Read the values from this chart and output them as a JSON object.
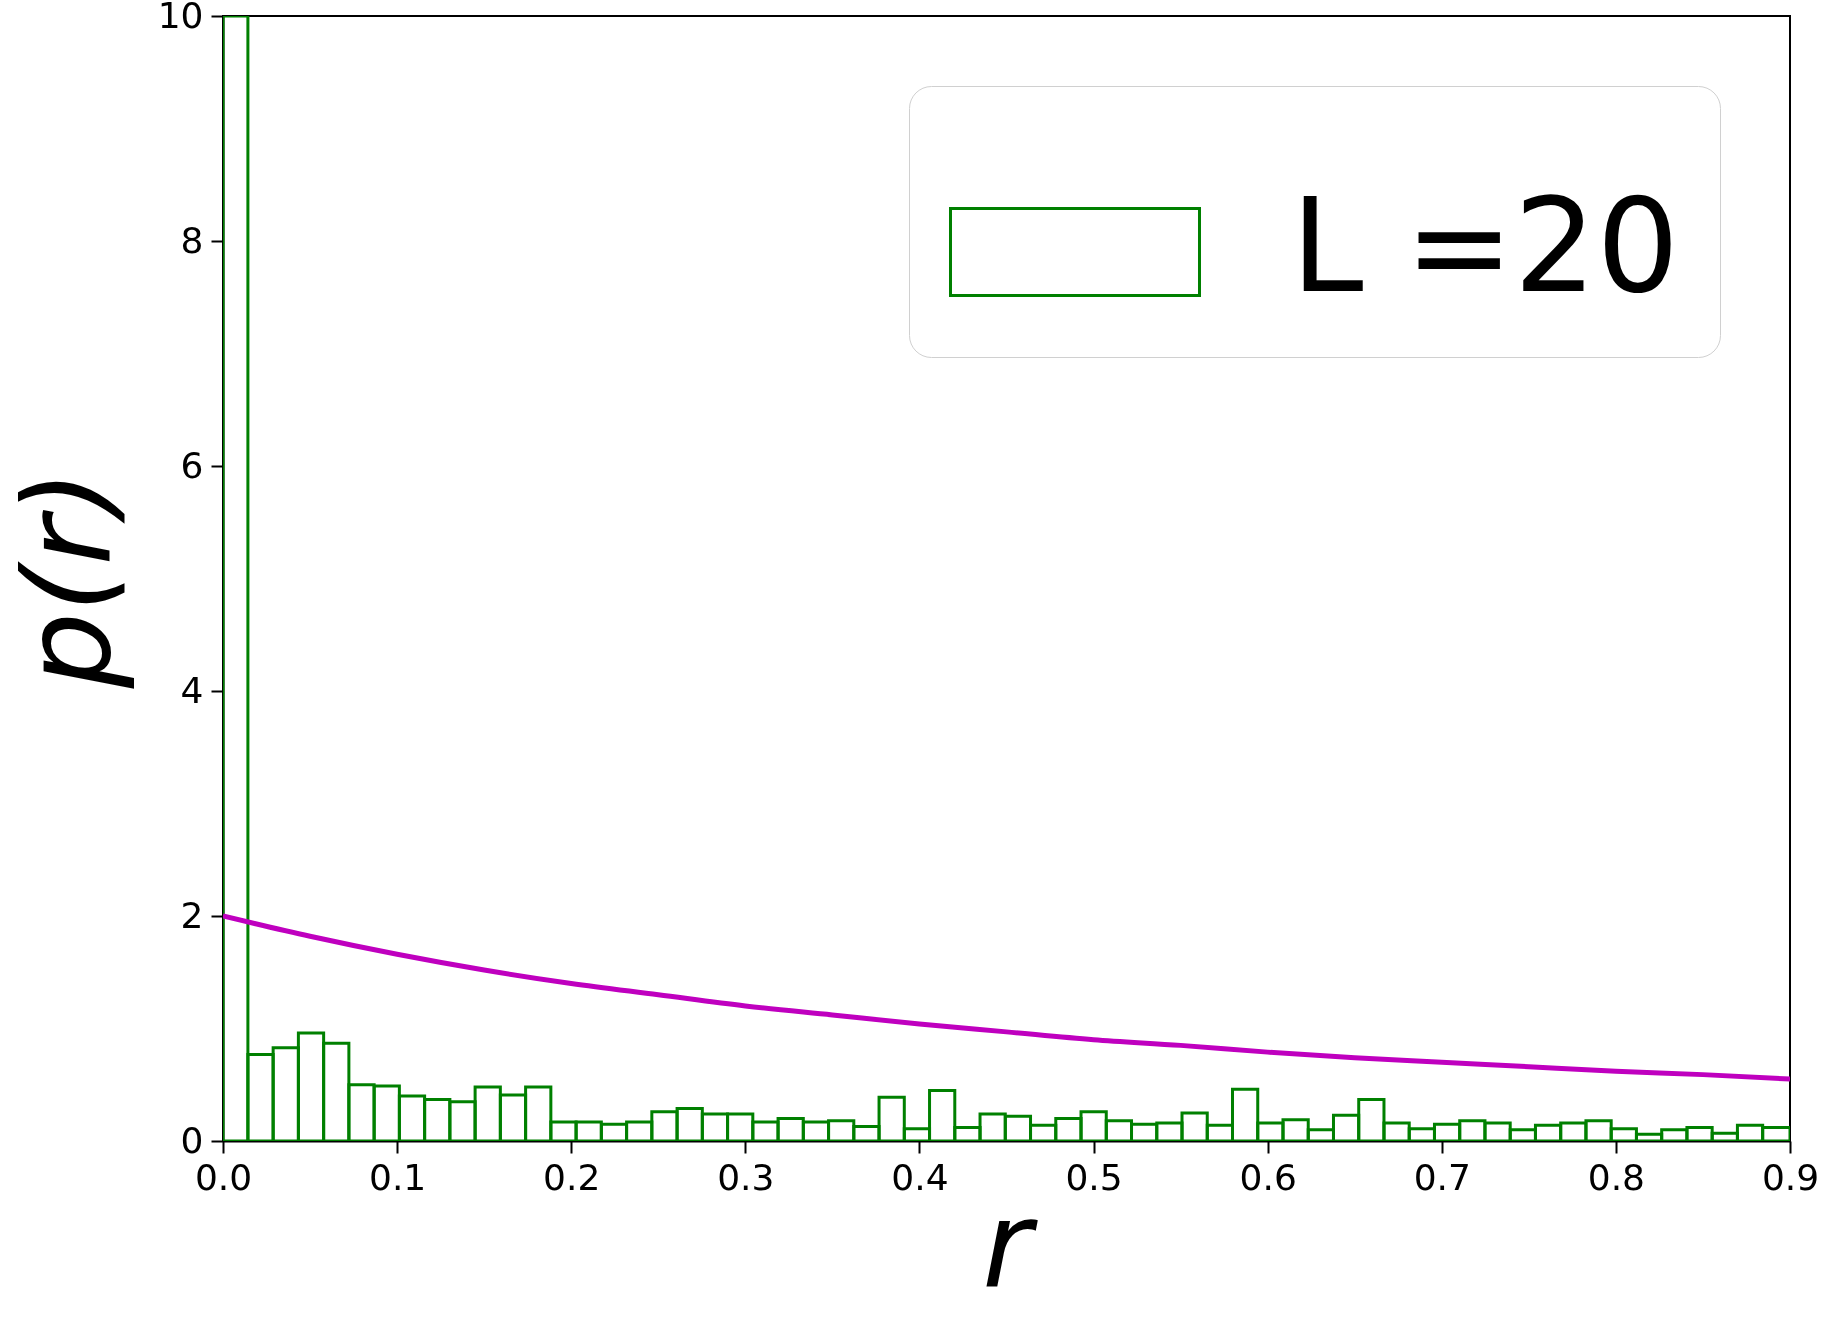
{
  "chart_data": {
    "type": "histogram",
    "xlabel": "r",
    "ylabel": "p(r)",
    "bins": [
      0,
      0.0143,
      0.0288,
      0.0433,
      0.0578,
      0.0723,
      0.0868,
      0.1013,
      0.1158,
      0.1303,
      0.1448,
      0.1593,
      0.1738,
      0.1883,
      0.2028,
      0.2173,
      0.2318,
      0.2463,
      0.2608,
      0.2753,
      0.2898,
      0.3043,
      0.3188,
      0.3333,
      0.3478,
      0.3623,
      0.3768,
      0.3913,
      0.4058,
      0.4203,
      0.4348,
      0.4493,
      0.4638,
      0.4783,
      0.4928,
      0.5073,
      0.5218,
      0.5363,
      0.5508,
      0.5653,
      0.5798,
      0.5943,
      0.6088,
      0.6233,
      0.6378,
      0.6523,
      0.6668,
      0.6813,
      0.6958,
      0.7103,
      0.7248,
      0.7393,
      0.7538,
      0.7683,
      0.7828,
      0.7973,
      0.8118,
      0.8263,
      0.8408,
      0.8553,
      0.8698,
      0.8843,
      0.9
    ],
    "series": [
      {
        "name": "L =20",
        "color": "#008000",
        "values": [
          10,
          0.77,
          0.83,
          0.96,
          0.87,
          0.5,
          0.49,
          0.4,
          0.37,
          0.35,
          0.48,
          0.41,
          0.48,
          0.17,
          0.17,
          0.15,
          0.17,
          0.26,
          0.29,
          0.24,
          0.24,
          0.17,
          0.2,
          0.17,
          0.18,
          0.13,
          0.39,
          0.11,
          0.45,
          0.12,
          0.24,
          0.22,
          0.14,
          0.2,
          0.26,
          0.18,
          0.15,
          0.16,
          0.25,
          0.14,
          0.46,
          0.16,
          0.19,
          0.1,
          0.23,
          0.37,
          0.16,
          0.11,
          0.15,
          0.18,
          0.16,
          0.1,
          0.14,
          0.16,
          0.18,
          0.11,
          0.06,
          0.1,
          0.12,
          0.07,
          0.14,
          0.12
        ]
      },
      {
        "type": "line",
        "color": "#bf00bf",
        "x": [
          0,
          0.05,
          0.1,
          0.15,
          0.2,
          0.25,
          0.3,
          0.35,
          0.4,
          0.45,
          0.5,
          0.55,
          0.6,
          0.65,
          0.7,
          0.75,
          0.8,
          0.85,
          0.9
        ],
        "values": [
          2.0,
          1.82,
          1.66,
          1.52,
          1.4,
          1.3,
          1.2,
          1.12,
          1.04,
          0.97,
          0.9,
          0.85,
          0.79,
          0.74,
          0.7,
          0.66,
          0.62,
          0.59,
          0.55
        ]
      }
    ],
    "xlim": [
      0,
      0.9
    ],
    "ylim": [
      0,
      10
    ],
    "xticks": [
      {
        "value": 0,
        "label": "0.0"
      },
      0.1,
      0.2,
      0.3,
      0.4,
      0.5,
      0.6,
      0.7,
      0.8,
      0.9
    ],
    "yticks": [
      0,
      2,
      4,
      6,
      8,
      10
    ],
    "legend": "top right",
    "grid": false
  }
}
